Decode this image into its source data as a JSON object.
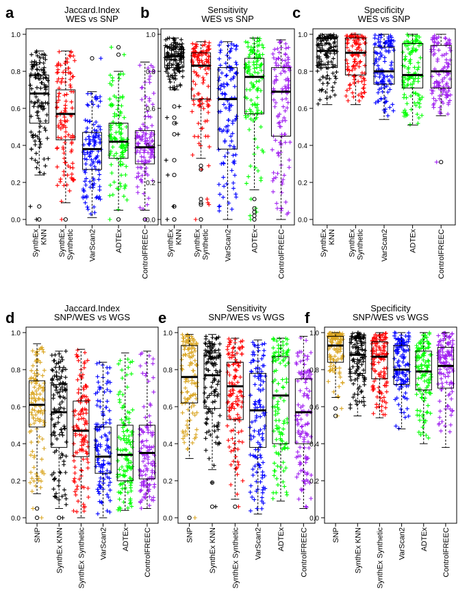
{
  "figure": {
    "panels_top_group": "WES vs SNP",
    "panels_bottom_group": "SNP/WES vs WGS"
  },
  "colors": {
    "SNP": "#DAA520",
    "SynthEx KNN": "#000000",
    "SynthEx Synthetic": "#FF0000",
    "VarScan2": "#0000FF",
    "ADTEx": "#00FF00",
    "ControlFREEC": "#A020F0"
  },
  "chart_data": [
    {
      "panel_letter": "a",
      "type": "boxplot",
      "title": "Jaccard.Index",
      "subtitle": "WES vs SNP",
      "categories": [
        "SynthEx\nKNN",
        "SynthEx\nSynthetic",
        "VarScan2",
        "ADTEx",
        "ControlFREEC"
      ],
      "series_keys": [
        "SynthEx KNN",
        "SynthEx Synthetic",
        "VarScan2",
        "ADTEx",
        "ControlFREEC"
      ],
      "ylim": [
        0,
        1
      ],
      "yticks": [
        "0.0",
        "0.2",
        "0.4",
        "0.6",
        "0.8",
        "1.0"
      ],
      "stats": [
        {
          "min": 0.24,
          "q1": 0.52,
          "median": 0.68,
          "q3": 0.78,
          "max": 0.91,
          "outliers": [
            0.07,
            0.0
          ]
        },
        {
          "min": 0.09,
          "q1": 0.43,
          "median": 0.57,
          "q3": 0.7,
          "max": 0.91,
          "outliers": [
            0.0
          ]
        },
        {
          "min": 0.01,
          "q1": 0.27,
          "median": 0.38,
          "q3": 0.47,
          "max": 0.69,
          "outliers": [
            0.87
          ]
        },
        {
          "min": 0.05,
          "q1": 0.33,
          "median": 0.42,
          "q3": 0.52,
          "max": 0.8,
          "outliers": [
            0.93,
            0.89,
            0.0
          ]
        },
        {
          "min": 0.05,
          "q1": 0.3,
          "median": 0.39,
          "q3": 0.48,
          "max": 0.85,
          "outliers": [
            0.0
          ]
        }
      ]
    },
    {
      "panel_letter": "b",
      "type": "boxplot",
      "title": "Sensitivity",
      "subtitle": "WES vs SNP",
      "categories": [
        "SynthEx\nKNN",
        "SynthEx\nSynthetic",
        "VarScan2",
        "ADTEx",
        "ControlFREEC"
      ],
      "series_keys": [
        "SynthEx KNN",
        "SynthEx Synthetic",
        "VarScan2",
        "ADTEx",
        "ControlFREEC"
      ],
      "ylim": [
        0,
        1
      ],
      "yticks": [
        "0.0",
        "0.2",
        "0.4",
        "0.6",
        "0.8",
        "1.0"
      ],
      "stats": [
        {
          "min": 0.7,
          "q1": 0.82,
          "median": 0.88,
          "q3": 0.93,
          "max": 0.98,
          "outliers": [
            0.61,
            0.55,
            0.52,
            0.46,
            0.32,
            0.24,
            0.07,
            0.0
          ]
        },
        {
          "min": 0.33,
          "q1": 0.65,
          "median": 0.83,
          "q3": 0.9,
          "max": 0.96,
          "outliers": [
            0.29,
            0.27,
            0.11,
            0.09,
            0.08,
            0.0
          ]
        },
        {
          "min": 0.0,
          "q1": 0.38,
          "median": 0.65,
          "q3": 0.82,
          "max": 0.96,
          "outliers": []
        },
        {
          "min": 0.16,
          "q1": 0.57,
          "median": 0.77,
          "q3": 0.87,
          "max": 0.98,
          "outliers": [
            0.11,
            0.06,
            0.04,
            0.02,
            0.0
          ]
        },
        {
          "min": 0.0,
          "q1": 0.45,
          "median": 0.69,
          "q3": 0.82,
          "max": 0.97,
          "outliers": []
        }
      ]
    },
    {
      "panel_letter": "c",
      "type": "boxplot",
      "title": "Specificity",
      "subtitle": "WES vs SNP",
      "categories": [
        "SynthEx\nKNN",
        "SynthEx\nSynthetic",
        "VarScan2",
        "ADTEx",
        "ControlFREEC"
      ],
      "series_keys": [
        "SynthEx KNN",
        "SynthEx Synthetic",
        "VarScan2",
        "ADTEx",
        "ControlFREEC"
      ],
      "ylim": [
        0,
        1
      ],
      "yticks": [
        "0.0",
        "0.2",
        "0.4",
        "0.6",
        "0.8",
        "1.0"
      ],
      "stats": [
        {
          "min": 0.62,
          "q1": 0.82,
          "median": 0.91,
          "q3": 0.98,
          "max": 1.0,
          "outliers": []
        },
        {
          "min": 0.62,
          "q1": 0.78,
          "median": 0.9,
          "q3": 0.98,
          "max": 1.0,
          "outliers": []
        },
        {
          "min": 0.54,
          "q1": 0.73,
          "median": 0.8,
          "q3": 0.93,
          "max": 1.0,
          "outliers": []
        },
        {
          "min": 0.51,
          "q1": 0.71,
          "median": 0.78,
          "q3": 0.95,
          "max": 1.0,
          "outliers": []
        },
        {
          "min": 0.56,
          "q1": 0.71,
          "median": 0.8,
          "q3": 0.94,
          "max": 1.0,
          "outliers": [
            0.31
          ]
        }
      ]
    },
    {
      "panel_letter": "d",
      "type": "boxplot",
      "title": "Jaccard.Index",
      "subtitle": "SNP/WES vs WGS",
      "categories": [
        "SNP",
        "SynthEx KNN",
        "SynthEx Synthetic",
        "VarScan2",
        "ADTEx",
        "ControlFREEC"
      ],
      "series_keys": [
        "SNP",
        "SynthEx KNN",
        "SynthEx Synthetic",
        "VarScan2",
        "ADTEx",
        "ControlFREEC"
      ],
      "ylim": [
        0,
        1
      ],
      "yticks": [
        "0.0",
        "0.2",
        "0.4",
        "0.6",
        "0.8",
        "1.0"
      ],
      "stats": [
        {
          "min": 0.13,
          "q1": 0.49,
          "median": 0.61,
          "q3": 0.74,
          "max": 0.94,
          "outliers": [
            0.05,
            0.0
          ]
        },
        {
          "min": 0.05,
          "q1": 0.38,
          "median": 0.57,
          "q3": 0.72,
          "max": 0.9,
          "outliers": [
            0.0
          ]
        },
        {
          "min": 0.0,
          "q1": 0.33,
          "median": 0.47,
          "q3": 0.63,
          "max": 0.91,
          "outliers": []
        },
        {
          "min": 0.0,
          "q1": 0.24,
          "median": 0.33,
          "q3": 0.49,
          "max": 0.84,
          "outliers": []
        },
        {
          "min": 0.04,
          "q1": 0.2,
          "median": 0.34,
          "q3": 0.5,
          "max": 0.89,
          "outliers": []
        },
        {
          "min": 0.05,
          "q1": 0.21,
          "median": 0.35,
          "q3": 0.5,
          "max": 0.9,
          "outliers": []
        }
      ]
    },
    {
      "panel_letter": "e",
      "type": "boxplot",
      "title": "Sensitivity",
      "subtitle": "SNP/WES vs WGS",
      "categories": [
        "SNP",
        "SynthEx KNN",
        "SynthEx Synthetic",
        "VarScan2",
        "ADTEx",
        "ControlFREEC"
      ],
      "series_keys": [
        "SNP",
        "SynthEx KNN",
        "SynthEx Synthetic",
        "VarScan2",
        "ADTEx",
        "ControlFREEC"
      ],
      "ylim": [
        0,
        1
      ],
      "yticks": [
        "0.0",
        "0.2",
        "0.4",
        "0.6",
        "0.8",
        "1.0"
      ],
      "stats": [
        {
          "min": 0.32,
          "q1": 0.62,
          "median": 0.76,
          "q3": 0.93,
          "max": 0.99,
          "outliers": [
            0.0
          ]
        },
        {
          "min": 0.26,
          "q1": 0.59,
          "median": 0.77,
          "q3": 0.89,
          "max": 0.99,
          "outliers": [
            0.19,
            0.06
          ]
        },
        {
          "min": 0.1,
          "q1": 0.53,
          "median": 0.71,
          "q3": 0.84,
          "max": 0.97,
          "outliers": [
            0.06
          ]
        },
        {
          "min": 0.02,
          "q1": 0.38,
          "median": 0.58,
          "q3": 0.78,
          "max": 0.96,
          "outliers": []
        },
        {
          "min": 0.09,
          "q1": 0.4,
          "median": 0.66,
          "q3": 0.87,
          "max": 0.97,
          "outliers": []
        },
        {
          "min": 0.05,
          "q1": 0.4,
          "median": 0.57,
          "q3": 0.75,
          "max": 0.98,
          "outliers": []
        }
      ]
    },
    {
      "panel_letter": "f",
      "type": "boxplot",
      "title": "Specificity",
      "subtitle": "SNP/WES vs WGS",
      "categories": [
        "SNP",
        "SynthEx KNN",
        "SynthEx Synthetic",
        "VarScan2",
        "ADTEx",
        "ControlFREEC"
      ],
      "series_keys": [
        "SNP",
        "SynthEx KNN",
        "SynthEx Synthetic",
        "VarScan2",
        "ADTEx",
        "ControlFREEC"
      ],
      "ylim": [
        0,
        1
      ],
      "yticks": [
        "0.0",
        "0.2",
        "0.4",
        "0.6",
        "0.8",
        "1.0"
      ],
      "stats": [
        {
          "min": 0.65,
          "q1": 0.84,
          "median": 0.93,
          "q3": 0.98,
          "max": 1.0,
          "outliers": [
            0.59,
            0.55
          ]
        },
        {
          "min": 0.55,
          "q1": 0.78,
          "median": 0.88,
          "q3": 0.97,
          "max": 1.0,
          "outliers": []
        },
        {
          "min": 0.54,
          "q1": 0.75,
          "median": 0.87,
          "q3": 0.95,
          "max": 1.0,
          "outliers": []
        },
        {
          "min": 0.48,
          "q1": 0.72,
          "median": 0.8,
          "q3": 0.93,
          "max": 1.0,
          "outliers": []
        },
        {
          "min": 0.4,
          "q1": 0.69,
          "median": 0.79,
          "q3": 0.9,
          "max": 1.0,
          "outliers": []
        },
        {
          "min": 0.38,
          "q1": 0.7,
          "median": 0.82,
          "q3": 0.92,
          "max": 1.0,
          "outliers": []
        }
      ]
    }
  ]
}
